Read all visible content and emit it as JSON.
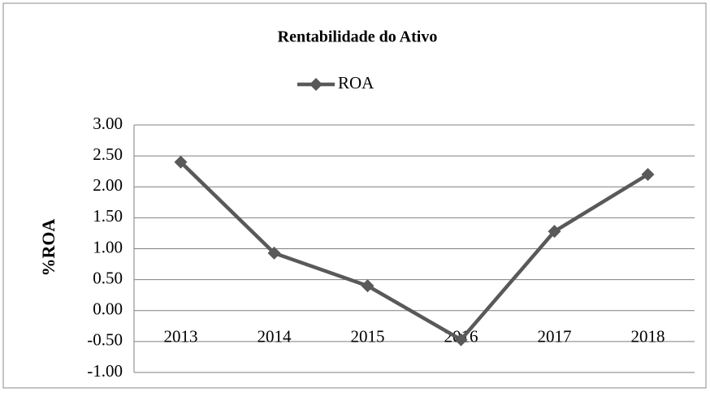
{
  "chart_data": {
    "type": "line",
    "title": "Rentabilidade do Ativo",
    "y_label": "%ROA",
    "categories": [
      "2013",
      "2014",
      "2015",
      "2016",
      "2017",
      "2018"
    ],
    "series": [
      {
        "name": "ROA",
        "color": "#595959",
        "values": [
          2.4,
          0.93,
          0.4,
          -0.47,
          1.28,
          2.2
        ]
      }
    ],
    "ylim": [
      -1,
      3
    ],
    "yticks": [
      {
        "value": -1,
        "label": "-1.00"
      },
      {
        "value": -0.5,
        "label": "-0.50"
      },
      {
        "value": 0,
        "label": "0.00"
      },
      {
        "value": 0.5,
        "label": "0.50"
      },
      {
        "value": 1,
        "label": "1.00"
      },
      {
        "value": 1.5,
        "label": "1.50"
      },
      {
        "value": 2,
        "label": "2.00"
      },
      {
        "value": 2.5,
        "label": "2.50"
      },
      {
        "value": 3,
        "label": "3.00"
      }
    ],
    "grid": true,
    "legend": "top"
  }
}
